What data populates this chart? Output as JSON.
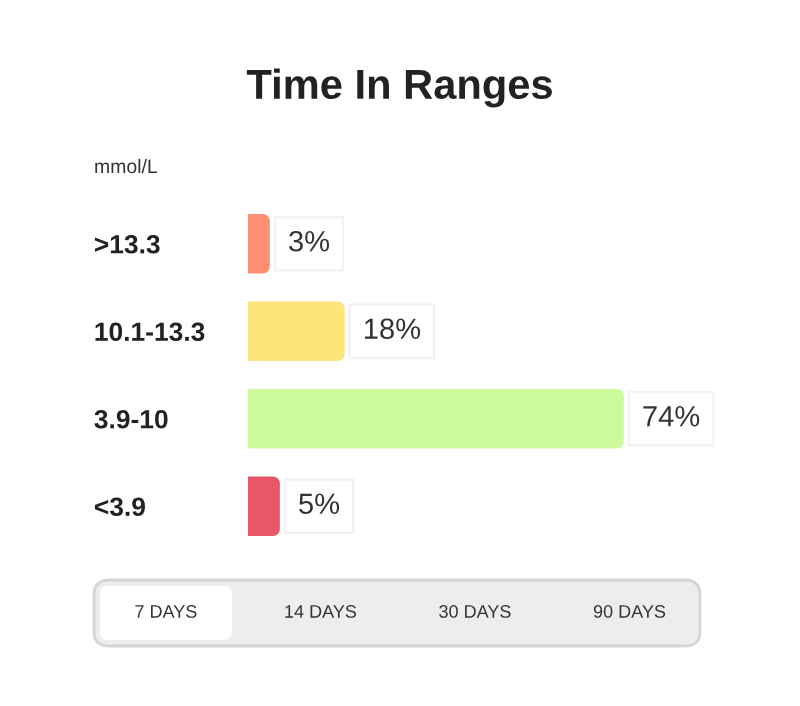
{
  "chart_data": {
    "type": "bar",
    "orientation": "horizontal",
    "title": "Time In Ranges",
    "ylabel": "mmol/L",
    "categories": [
      ">13.3",
      "10.1-13.3",
      "3.9-10",
      "<3.9"
    ],
    "values": [
      3,
      18,
      74,
      5
    ],
    "value_labels": [
      "3%",
      "18%",
      "74%",
      "5%"
    ],
    "colors": [
      "#fe8f72",
      "#ffe47c",
      "#cdfb9c",
      "#e85768"
    ],
    "grid": false,
    "annotations": [
      "7 DAYS",
      "14 DAYS",
      "30 DAYS",
      "90 DAYS"
    ]
  }
}
